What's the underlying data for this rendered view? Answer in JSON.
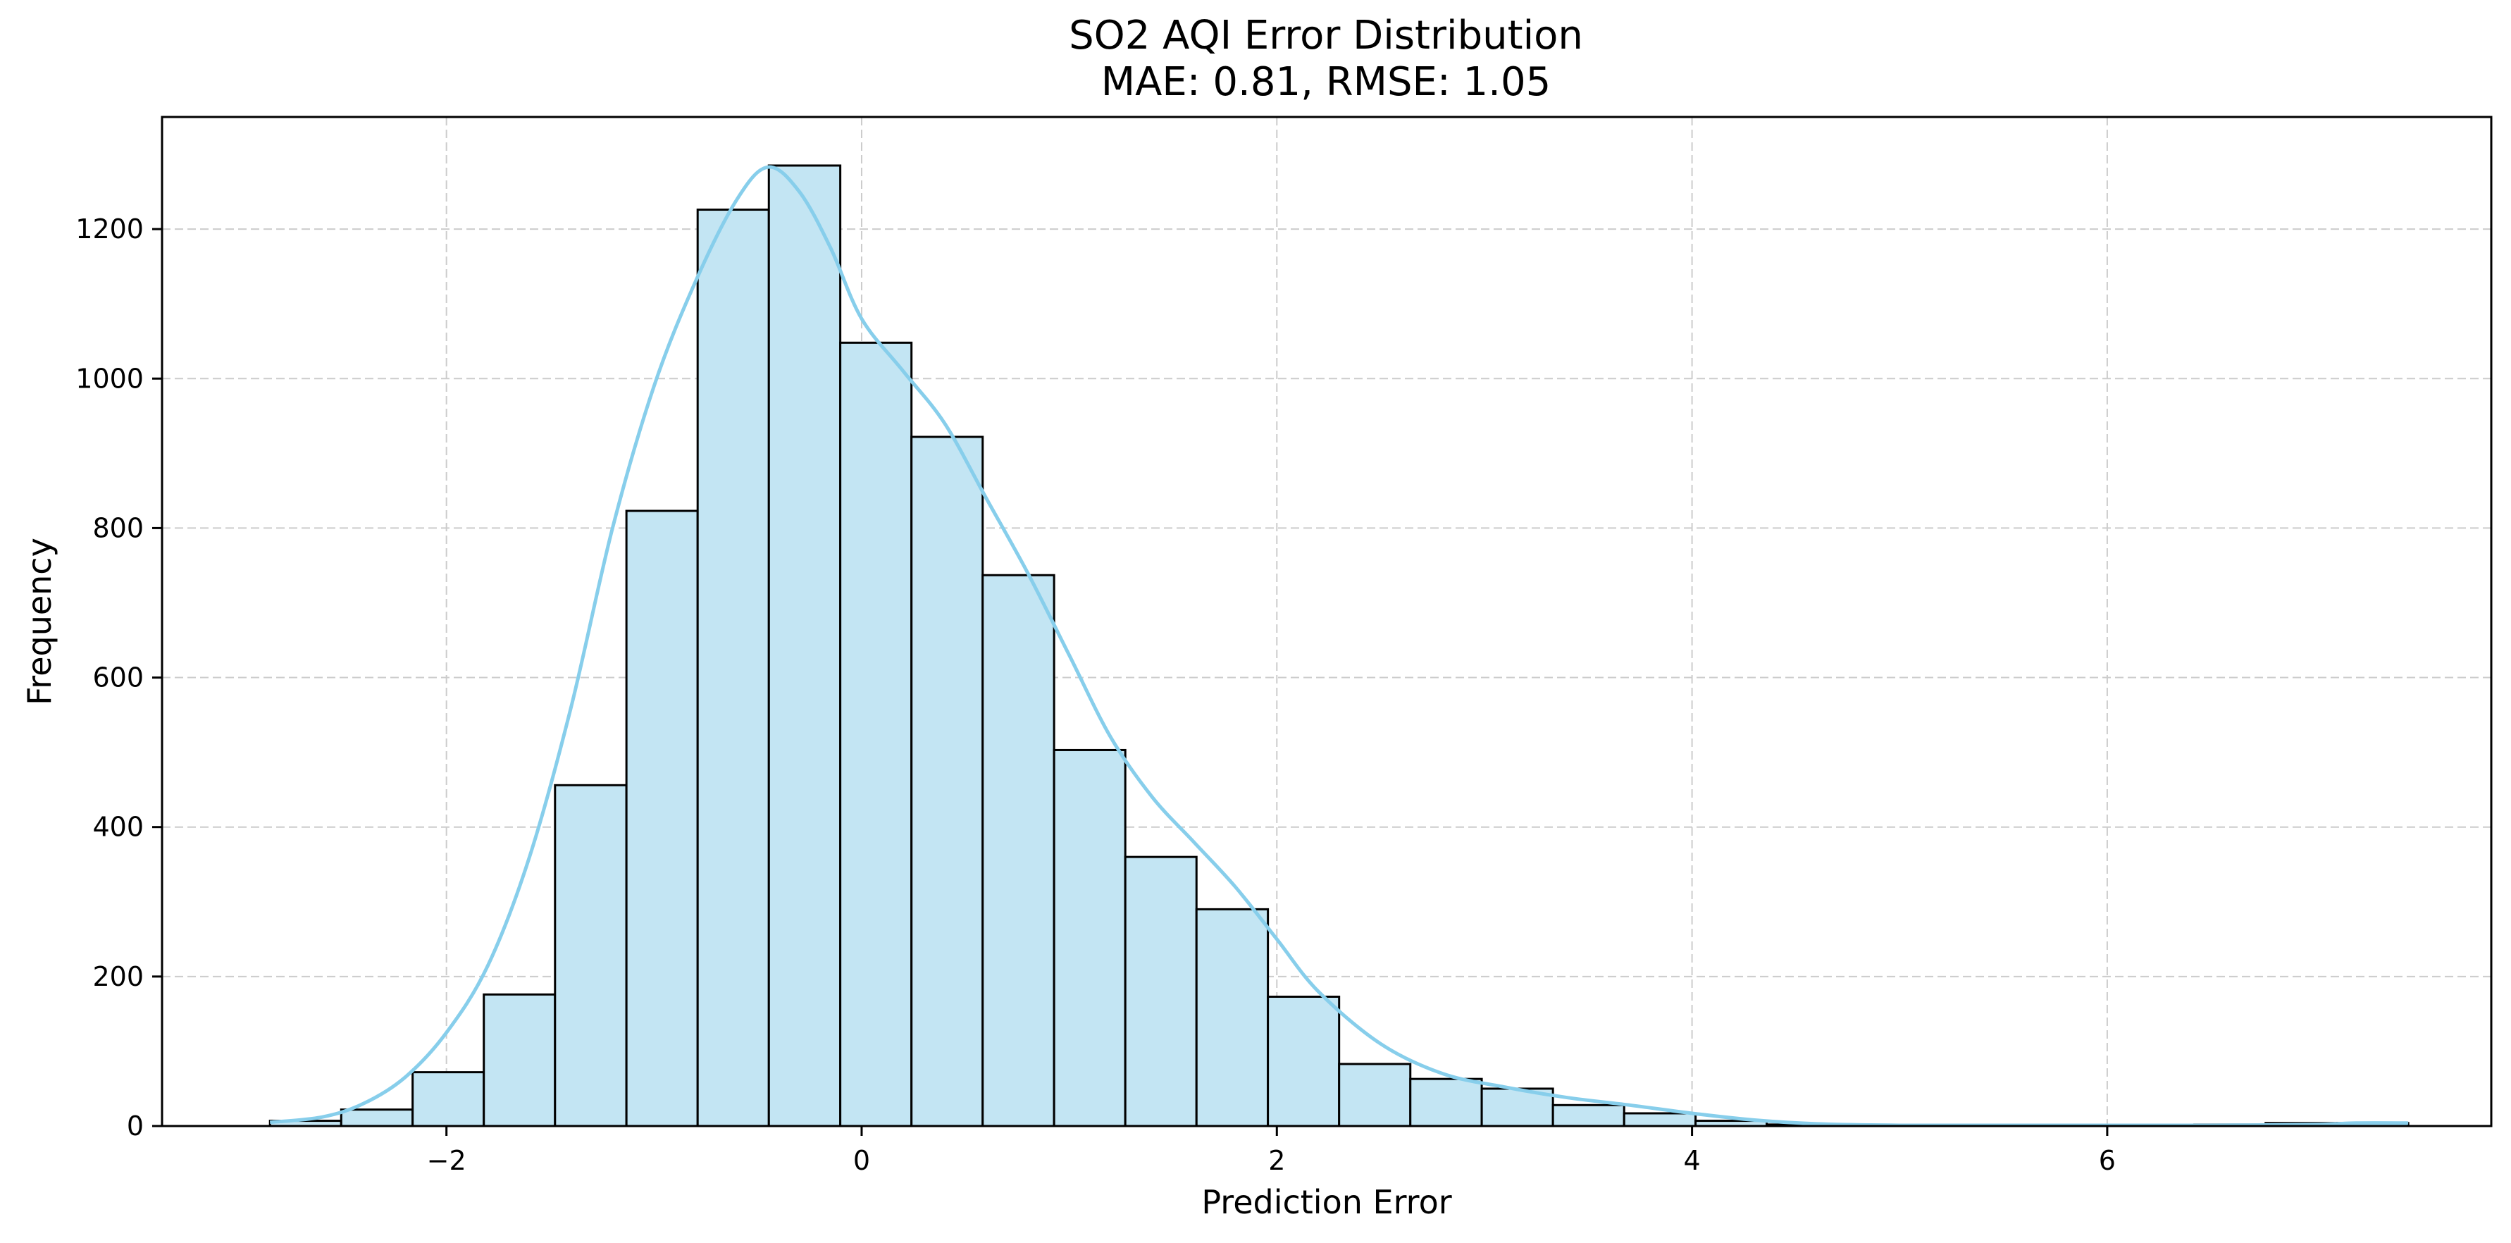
{
  "chart_data": {
    "type": "bar",
    "title": "SO2 AQI Error Distribution",
    "subtitle": "MAE: 0.81, RMSE: 1.05",
    "xlabel": "Prediction Error",
    "ylabel": "Frequency",
    "xlim": [
      -3.37,
      7.85
    ],
    "ylim": [
      0,
      1350
    ],
    "xticks": [
      -2,
      0,
      2,
      4,
      6
    ],
    "xtick_labels": [
      "−2",
      "0",
      "2",
      "4",
      "6"
    ],
    "yticks": [
      0,
      200,
      400,
      600,
      800,
      1000,
      1200
    ],
    "ytick_labels": [
      "0",
      "200",
      "400",
      "600",
      "800",
      "1000",
      "1200"
    ],
    "grid": true,
    "bin_edges": [
      -2.85,
      -2.507,
      -2.163,
      -1.82,
      -1.477,
      -1.133,
      -0.79,
      -0.447,
      -0.103,
      0.24,
      0.583,
      0.927,
      1.27,
      1.613,
      1.957,
      2.3,
      2.643,
      2.987,
      3.33,
      3.673,
      4.017,
      4.36,
      4.703,
      5.047,
      5.39,
      5.733,
      6.077,
      6.42,
      6.763,
      7.107,
      7.45
    ],
    "values": [
      7,
      22,
      72,
      176,
      456,
      823,
      1226,
      1285,
      1048,
      922,
      737,
      503,
      360,
      290,
      173,
      83,
      63,
      50,
      28,
      17,
      7,
      2,
      1,
      1,
      1,
      1,
      1,
      2,
      4,
      4
    ],
    "kde": {
      "x": [
        -2.85,
        -2.6,
        -2.4,
        -2.2,
        -2.0,
        -1.8,
        -1.6,
        -1.4,
        -1.2,
        -1.0,
        -0.8,
        -0.6,
        -0.45,
        -0.3,
        -0.15,
        0.0,
        0.2,
        0.4,
        0.6,
        0.8,
        1.0,
        1.2,
        1.4,
        1.6,
        1.8,
        2.0,
        2.2,
        2.5,
        2.8,
        3.1,
        3.4,
        3.7,
        4.0,
        4.3,
        4.6,
        5.0,
        5.5,
        6.0,
        6.5,
        7.0,
        7.2,
        7.45
      ],
      "y": [
        5,
        12,
        30,
        65,
        125,
        215,
        360,
        560,
        800,
        990,
        1130,
        1240,
        1283,
        1250,
        1175,
        1080,
        1010,
        940,
        840,
        740,
        630,
        520,
        440,
        380,
        320,
        250,
        180,
        110,
        70,
        52,
        38,
        28,
        17,
        8,
        3,
        1,
        1,
        1,
        1,
        2,
        4,
        4
      ]
    },
    "colors": {
      "bar_fill": "#c3e5f3",
      "bar_edge": "#000000",
      "kde_line": "#87ceeb",
      "grid": "#cccccc"
    }
  }
}
